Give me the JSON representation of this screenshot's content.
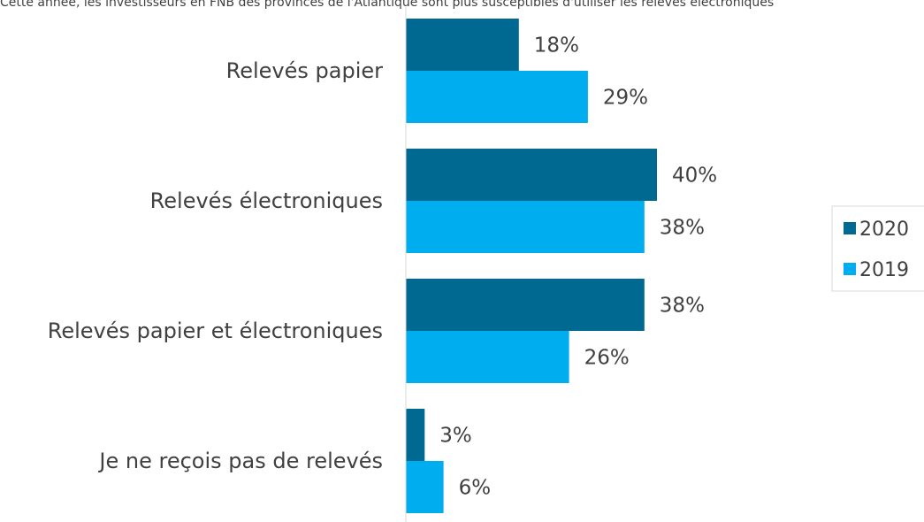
{
  "chart_data": {
    "type": "bar",
    "orientation": "horizontal",
    "title": "Cette année, les investisseurs en FNB des provinces de l'Atlantique sont plus susceptibles d'utiliser les relevés électroniques",
    "xlabel": "",
    "ylabel": "",
    "xlim": [
      0,
      60
    ],
    "grid": false,
    "legend_position": "right",
    "value_suffix": "%",
    "categories": [
      "Relevés papier",
      "Relevés électroniques",
      "Relevés papier et électroniques",
      "Je ne reçois pas de relevés"
    ],
    "series": [
      {
        "name": "2020",
        "color": "#006991",
        "values": [
          18,
          40,
          38,
          3
        ]
      },
      {
        "name": "2019",
        "color": "#00ADEF",
        "values": [
          29,
          38,
          26,
          6
        ]
      }
    ]
  }
}
